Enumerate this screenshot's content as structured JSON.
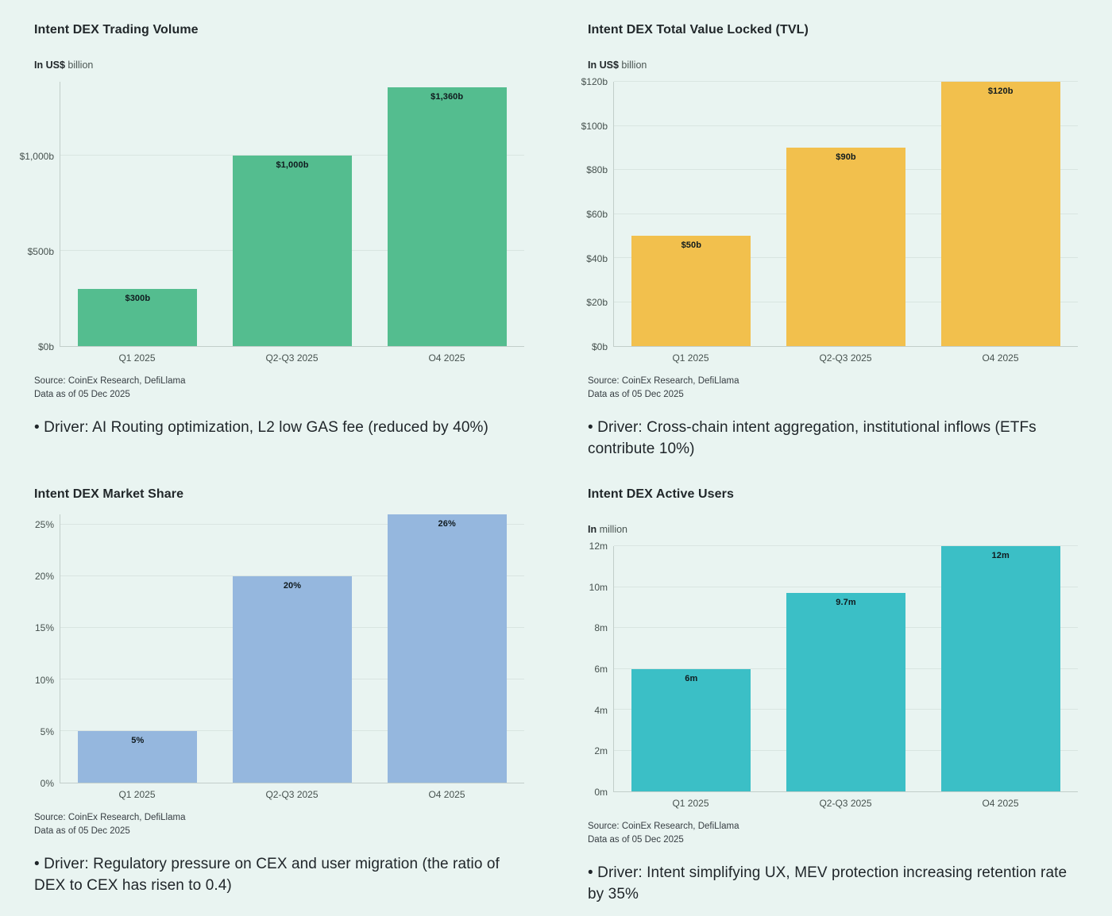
{
  "page": {
    "background_color": "#e9f4f1"
  },
  "chart_data": [
    {
      "type": "bar",
      "title": "Intent DEX Trading Volume",
      "unit_label_bold": "In US$",
      "unit_label_rest": " billion",
      "categories": [
        "Q1 2025",
        "Q2-Q3 2025",
        "O4 2025"
      ],
      "values": [
        300,
        1000,
        1360
      ],
      "bar_labels": [
        "$300b",
        "$1,000b",
        "$1,360b"
      ],
      "bar_color": "#54bd8f",
      "axis_max": 1390,
      "ticks": [
        {
          "value": 0,
          "label": "$0b"
        },
        {
          "value": 500,
          "label": "$500b"
        },
        {
          "value": 1000,
          "label": "$1,000b"
        }
      ],
      "ylabel": "In US$ billion",
      "grid": true,
      "source_line1": "Source: CoinEx Research, DefiLlama",
      "source_line2": "Data as of 05 Dec 2025",
      "driver": "• Driver: AI Routing optimization, L2 low GAS fee (reduced by 40%)"
    },
    {
      "type": "bar",
      "title": "Intent DEX Total Value Locked (TVL)",
      "unit_label_bold": "In US$",
      "unit_label_rest": " billion",
      "categories": [
        "Q1 2025",
        "Q2-Q3 2025",
        "O4 2025"
      ],
      "values": [
        50,
        90,
        120
      ],
      "bar_labels": [
        "$50b",
        "$90b",
        "$120b"
      ],
      "bar_color": "#f2c04d",
      "axis_max": 120,
      "ticks": [
        {
          "value": 0,
          "label": "$0b"
        },
        {
          "value": 20,
          "label": "$20b"
        },
        {
          "value": 40,
          "label": "$40b"
        },
        {
          "value": 60,
          "label": "$60b"
        },
        {
          "value": 80,
          "label": "$80b"
        },
        {
          "value": 100,
          "label": "$100b"
        },
        {
          "value": 120,
          "label": "$120b"
        }
      ],
      "ylabel": "In US$ billion",
      "grid": true,
      "source_line1": "Source: CoinEx Research, DefiLlama",
      "source_line2": "Data as of 05 Dec 2025",
      "driver": "• Driver: Cross-chain intent aggregation, institutional inflows (ETFs contribute 10%)"
    },
    {
      "type": "bar",
      "title": "Intent DEX Market Share",
      "unit_label_bold": "",
      "unit_label_rest": "",
      "categories": [
        "Q1 2025",
        "Q2-Q3 2025",
        "O4 2025"
      ],
      "values": [
        5,
        20,
        26
      ],
      "bar_labels": [
        "5%",
        "20%",
        "26%"
      ],
      "bar_color": "#95b7de",
      "axis_max": 26,
      "ticks": [
        {
          "value": 0,
          "label": "0%"
        },
        {
          "value": 5,
          "label": "5%"
        },
        {
          "value": 10,
          "label": "10%"
        },
        {
          "value": 15,
          "label": "15%"
        },
        {
          "value": 20,
          "label": "20%"
        },
        {
          "value": 25,
          "label": "25%"
        }
      ],
      "ylabel": "",
      "grid": true,
      "source_line1": "Source: CoinEx Research, DefiLlama",
      "source_line2": "Data as of 05 Dec 2025",
      "driver": "• Driver: Regulatory pressure on CEX and user migration (the ratio of DEX to CEX has risen to 0.4)"
    },
    {
      "type": "bar",
      "title": "Intent DEX Active Users",
      "unit_label_bold": "In",
      "unit_label_rest": " million",
      "categories": [
        "Q1 2025",
        "Q2-Q3 2025",
        "O4 2025"
      ],
      "values": [
        6,
        9.7,
        12
      ],
      "bar_labels": [
        "6m",
        "9.7m",
        "12m"
      ],
      "bar_color": "#3bbfc6",
      "axis_max": 12,
      "ticks": [
        {
          "value": 0,
          "label": "0m"
        },
        {
          "value": 2,
          "label": "2m"
        },
        {
          "value": 4,
          "label": "4m"
        },
        {
          "value": 6,
          "label": "6m"
        },
        {
          "value": 8,
          "label": "8m"
        },
        {
          "value": 10,
          "label": "10m"
        },
        {
          "value": 12,
          "label": "12m"
        }
      ],
      "ylabel": "In million",
      "grid": true,
      "source_line1": "Source: CoinEx Research, DefiLlama",
      "source_line2": "Data as of 05 Dec 2025",
      "driver": "• Driver: Intent simplifying UX, MEV protection increasing retention rate by 35%"
    }
  ]
}
